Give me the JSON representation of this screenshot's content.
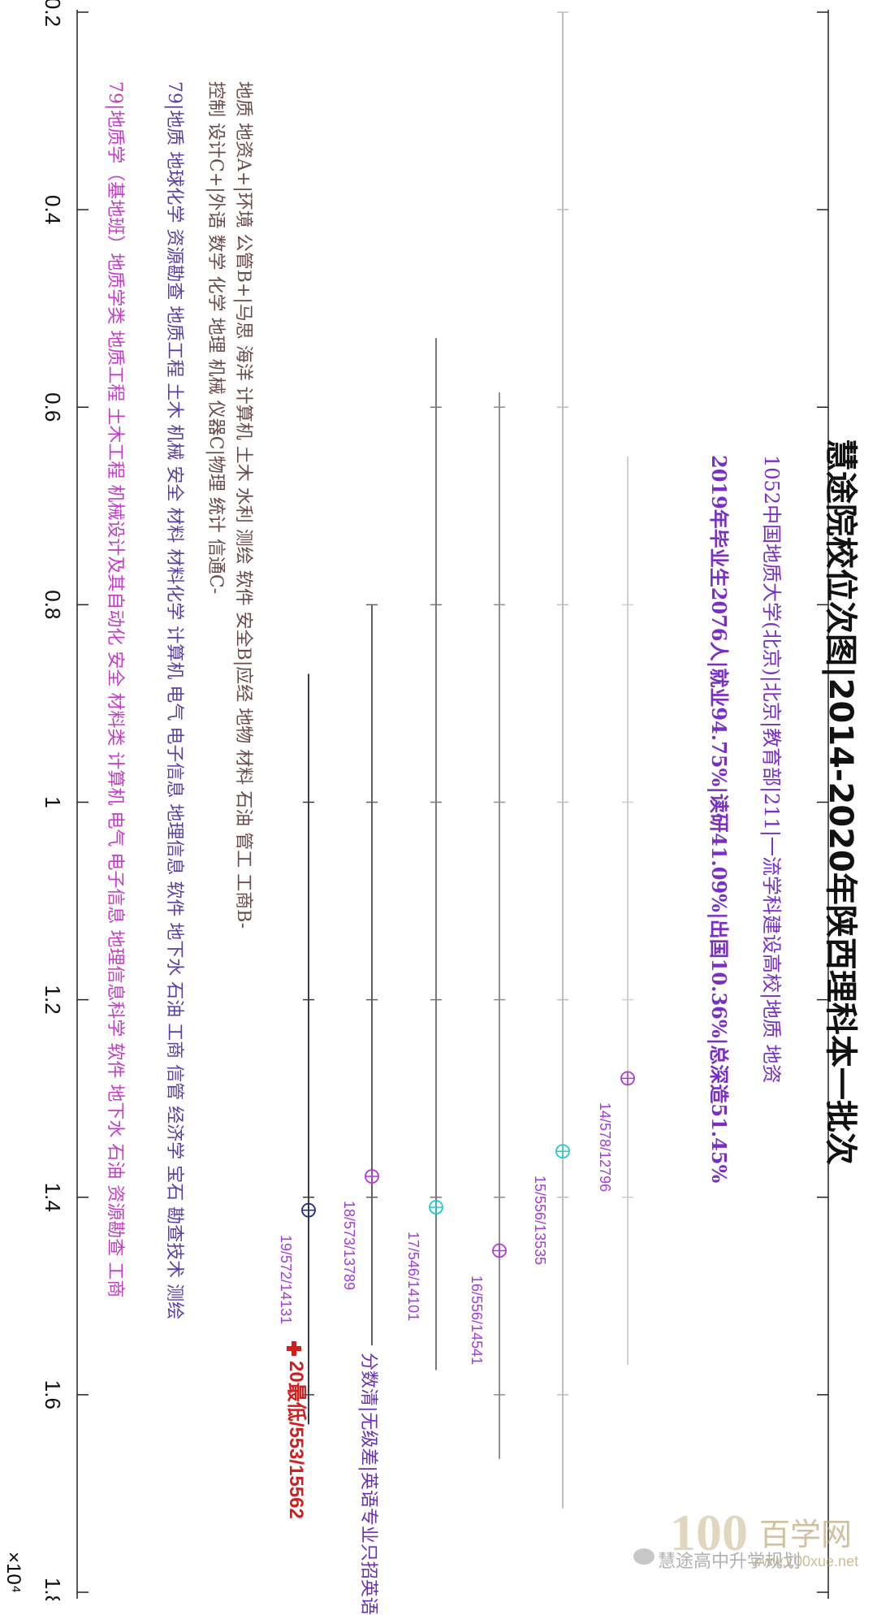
{
  "title": "慧途院校位次图|2014-2020年陕西理科本一批次",
  "info_line1": "1052中国地质大学(北京)|北京|教育部|211|一流学科建设高校|地质 地资",
  "info_line2": "2019年毕业生2076人|就业94.75%|读研41.09%|出国10.36%|总深造51.45%",
  "majors": {
    "rating_line1": "地质 地资A+|环境 公管B+|马思 海洋 计算机 土木 水利 测绘 软件 安全B|应经 地物 材料 石油 管工 工商B-",
    "rating_line2": "控制 设计C+|外语 数学 化学 地理 机械 仪器C|物理 统计 信通C-",
    "majors_2019": "79|地质 地球化学 资源勘查 地质工程 土木 机械 安全 材料 材料化学 计算机 电气 电子信息 地理信息 软件 地下水 石油 工商 信管 经济学 宝石 勘查技术 测绘",
    "majors_2020": "79|地质学（基地班）地质学类 地质工程 土木工程 机械设计及其自动化 安全 材料类 计算机 电气 电子信息 地理信息科学 软件 地下水 石油 资源勘查 工商"
  },
  "legend_text": "分数清|无级差|英语专业只招英语",
  "min_label": "20最低/553/15562",
  "axis_exponent": "×10⁴",
  "watermark": {
    "brand": "百学网",
    "url": "www.100xue.net",
    "wechat": "慧途高中升学规划",
    "logo": "100"
  },
  "colors": {
    "series": [
      "#cfcfcf",
      "#bdbdbd",
      "#8f8f8f",
      "#787878",
      "#5f5f5f",
      "#3a3a4a"
    ],
    "markers": [
      "#b03ad0",
      "#25c9c9",
      "#b03ad0",
      "#25c9c9",
      "#b03ad0",
      "#1f2a8a"
    ],
    "point_label": "#a23bd6",
    "min_label": "#d11f1f"
  },
  "chart_data": {
    "type": "scatter",
    "orientation": "rotated-90",
    "axis_range": [
      2000,
      18000
    ],
    "ticks": [
      0.2,
      0.4,
      0.6,
      0.8,
      1,
      1.2,
      1.4,
      1.6,
      1.8
    ],
    "tick_labels": [
      "0.2",
      "0.4",
      "0.6",
      "0.8",
      "1",
      "1.2",
      "1.4",
      "1.6",
      "1.8"
    ],
    "series": [
      {
        "year": 2014,
        "rank": 12796,
        "label": "14/578/12796",
        "range": [
          6500,
          15700
        ]
      },
      {
        "year": 2015,
        "rank": 13535,
        "label": "15/556/13535",
        "range": [
          2000,
          17150
        ]
      },
      {
        "year": 2016,
        "rank": 14541,
        "label": "16/556/14541",
        "range": [
          5850,
          16650
        ]
      },
      {
        "year": 2017,
        "rank": 14101,
        "label": "17/546/14101",
        "range": [
          5300,
          15750
        ]
      },
      {
        "year": 2018,
        "rank": 13789,
        "label": "18/573/13789",
        "range": [
          8000,
          15500
        ]
      },
      {
        "year": 2019,
        "rank": 14131,
        "label": "19/572/14131",
        "range": [
          8700,
          16300
        ]
      }
    ]
  }
}
